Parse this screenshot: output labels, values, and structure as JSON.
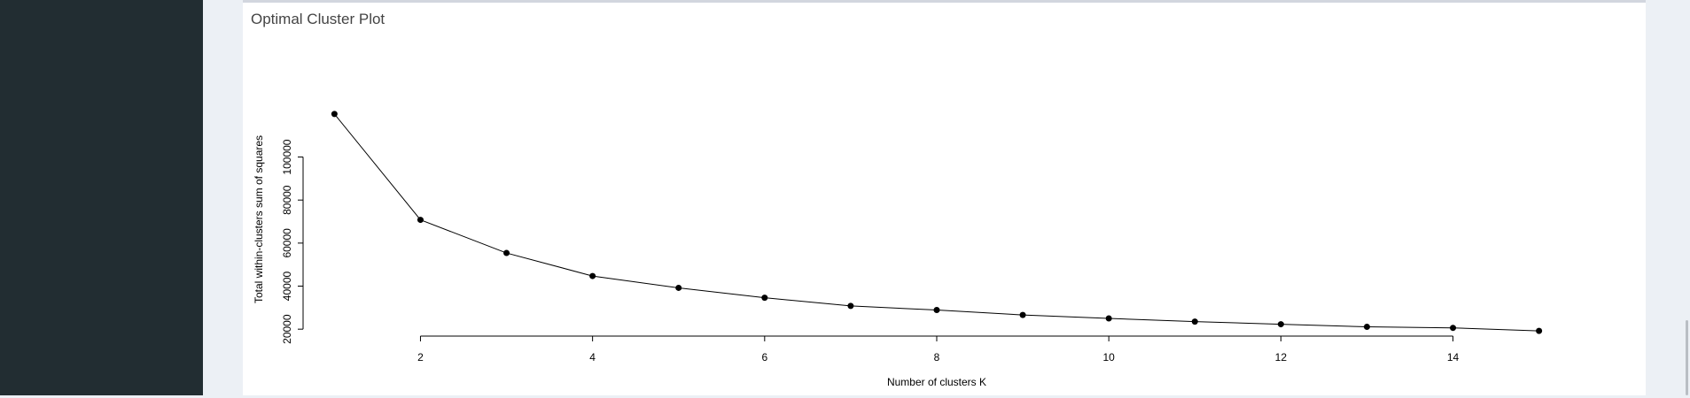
{
  "panel": {
    "title": "Optimal Cluster Plot"
  },
  "chart_data": {
    "type": "line",
    "title": "",
    "xlabel": "Number of clusters K",
    "ylabel": "Total within-clusters sum of squares",
    "x": [
      1,
      2,
      3,
      4,
      5,
      6,
      7,
      8,
      9,
      10,
      11,
      12,
      13,
      14,
      15
    ],
    "series": [
      {
        "values": [
          120000,
          70800,
          55400,
          44700,
          39200,
          34600,
          30800,
          28900,
          26600,
          25000,
          23500,
          22300,
          21100,
          20600,
          19200
        ]
      }
    ],
    "xticks": [
      2,
      4,
      6,
      8,
      10,
      12,
      14
    ],
    "xtick_labels": [
      "2",
      "4",
      "6",
      "8",
      "10",
      "12",
      "14"
    ],
    "yticks": [
      20000,
      40000,
      60000,
      80000,
      100000
    ],
    "ytick_labels": [
      "20000",
      "40000",
      "60000",
      "80000",
      "100000"
    ],
    "xlim": [
      0.44,
      15.56
    ],
    "ylim": [
      15960,
      123240
    ],
    "markers": "filled-circle",
    "line_color": "#000000",
    "grid": false,
    "legend": "none"
  }
}
